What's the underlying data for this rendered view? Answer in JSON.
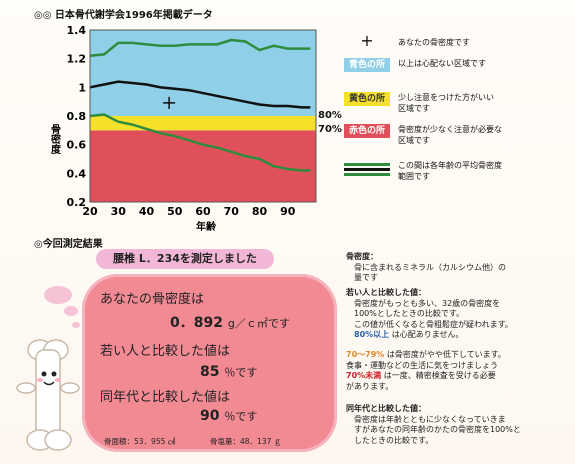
{
  "source_title": "◎◎ 日本骨代謝学会1996年掲載データ",
  "chart_data": {
    "type": "line",
    "x": [
      20,
      25,
      30,
      35,
      40,
      45,
      50,
      55,
      60,
      65,
      70,
      75,
      80,
      85,
      90,
      95,
      98
    ],
    "xlim": [
      20,
      100
    ],
    "ylim": [
      0.2,
      1.4
    ],
    "xticks": [
      "20",
      "30",
      "40",
      "50",
      "60",
      "70",
      "80",
      "90"
    ],
    "yticks": [
      "1.4",
      "1.2",
      "1",
      "0.8",
      "0.6",
      "0.4",
      "0.2"
    ],
    "xlabel": "年齢",
    "ylabel": "骨密度",
    "series": [
      {
        "values": [
          1.22,
          1.23,
          1.31,
          1.31,
          1.3,
          1.29,
          1.29,
          1.3,
          1.3,
          1.3,
          1.33,
          1.32,
          1.26,
          1.29,
          1.27,
          1.27,
          1.27
        ]
      },
      {
        "values": [
          1.0,
          1.02,
          1.04,
          1.03,
          1.02,
          1.0,
          0.99,
          0.98,
          0.96,
          0.94,
          0.92,
          0.9,
          0.88,
          0.87,
          0.87,
          0.86,
          0.86
        ]
      },
      {
        "values": [
          0.8,
          0.81,
          0.76,
          0.74,
          0.71,
          0.68,
          0.66,
          0.63,
          0.6,
          0.58,
          0.55,
          0.52,
          0.5,
          0.45,
          0.43,
          0.42,
          0.42
        ]
      }
    ],
    "bands": [
      {
        "from": 0.2,
        "to": 0.7,
        "color": "#e0505a"
      },
      {
        "from": 0.7,
        "to": 0.8,
        "color": "#f5e02a"
      },
      {
        "from": 0.8,
        "to": 1.4,
        "color": "#8fcfe8"
      }
    ],
    "marker": {
      "x": 48,
      "y": 0.892
    },
    "band_labels": [
      "80%",
      "70%"
    ]
  },
  "colors": {
    "blue": "#8fcfe8",
    "yellow": "#f5e02a",
    "red": "#e0505a",
    "green": "#2f8c3e",
    "black": "#111111",
    "pink": "#f28a94"
  },
  "legend": {
    "marker_text": "あなたの骨密度です",
    "blue_label": "青色の所",
    "blue_text": "以上は心配ない区域です",
    "yellow_label": "黄色の所",
    "yellow_text_1": "少し注意をつけた方がいい",
    "yellow_text_2": "区域です",
    "red_label": "赤色の所",
    "red_text_1": "骨密度が少なく注意が必要な",
    "red_text_2": "区域です",
    "lines_text_1": "この間は各年齢の平均骨密度",
    "lines_text_2": "範囲です"
  },
  "result": {
    "section_title": "◎今回測定結果",
    "measured": "腰椎 L．234を測定しました",
    "bmd_label": "あなたの骨密度は",
    "bmd_value": "0．892",
    "bmd_unit": "g／ｃ㎡です",
    "young_label": "若い人と比較した値は",
    "young_value": "85",
    "young_unit": "％です",
    "peer_label": "同年代と比較した値は",
    "peer_value": "90",
    "peer_unit": "％です",
    "area": "骨面積：53．955 ㎠",
    "bmc": "骨塩量：48．137 ｇ"
  },
  "notes": {
    "bmd_head": "骨密度：",
    "bmd_1": "骨に含まれるミネラル（カルシウム他）の",
    "bmd_2": "量です",
    "young_head": "若い人と比較した値：",
    "young_1": "骨密度がもっとも多い、32歳の骨密度を",
    "young_2": "100%としたときの比較です。",
    "young_3": "この値が低くなると骨粗鬆症が疑われます。",
    "young_4a": "80%以上",
    "young_4b": "は心配ありません。",
    "range_a": "70～79%",
    "range_1": "は骨密度がやや低下しています。",
    "range_2": "食事・運動などの生活に気をつけましょう",
    "range_b": "70%未満",
    "range_3": "は一度、精密検査を受ける必要",
    "range_4": "があります。",
    "peer_head": "同年代と比較した値：",
    "peer_1": "骨密度は年齢とともに少なくなっていきま",
    "peer_2": "すがあなたの同年齢のかたの骨密度を100%と",
    "peer_3": "したときの比較です。"
  }
}
